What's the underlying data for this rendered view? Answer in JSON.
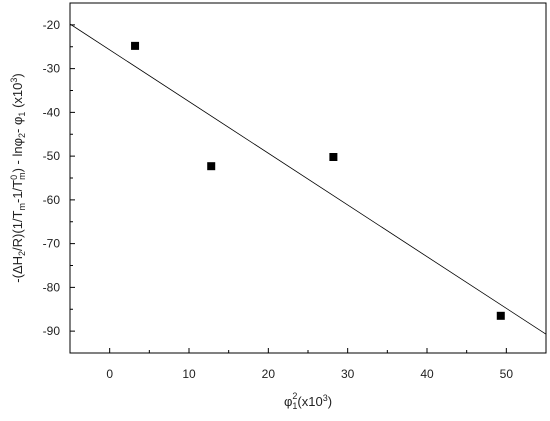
{
  "chart_data": {
    "type": "scatter",
    "title": "",
    "xlabel": "φ₁²(x10³)",
    "ylabel": "-(ΔH₂/R)(1/Tₘ-1/T⁰ₘ) - lnφ₂- φ₁ (x10³)",
    "xlim": [
      -5,
      55
    ],
    "ylim": [
      -95,
      -15
    ],
    "xticks": [
      0,
      10,
      20,
      30,
      40,
      50
    ],
    "yticks": [
      -20,
      -30,
      -40,
      -50,
      -60,
      -70,
      -80,
      -90
    ],
    "grid": false,
    "legend": "none",
    "points": [
      {
        "x": 3.2,
        "y": -24.8
      },
      {
        "x": 12.8,
        "y": -52.3
      },
      {
        "x": 28.2,
        "y": -50.2
      },
      {
        "x": 49.3,
        "y": -86.5
      }
    ],
    "fit_line": {
      "x": [
        -5,
        55
      ],
      "y": [
        -19.8,
        -90.7
      ]
    },
    "colors": {
      "marker": "#000000",
      "line": "#000000",
      "axis": "#000000"
    }
  }
}
